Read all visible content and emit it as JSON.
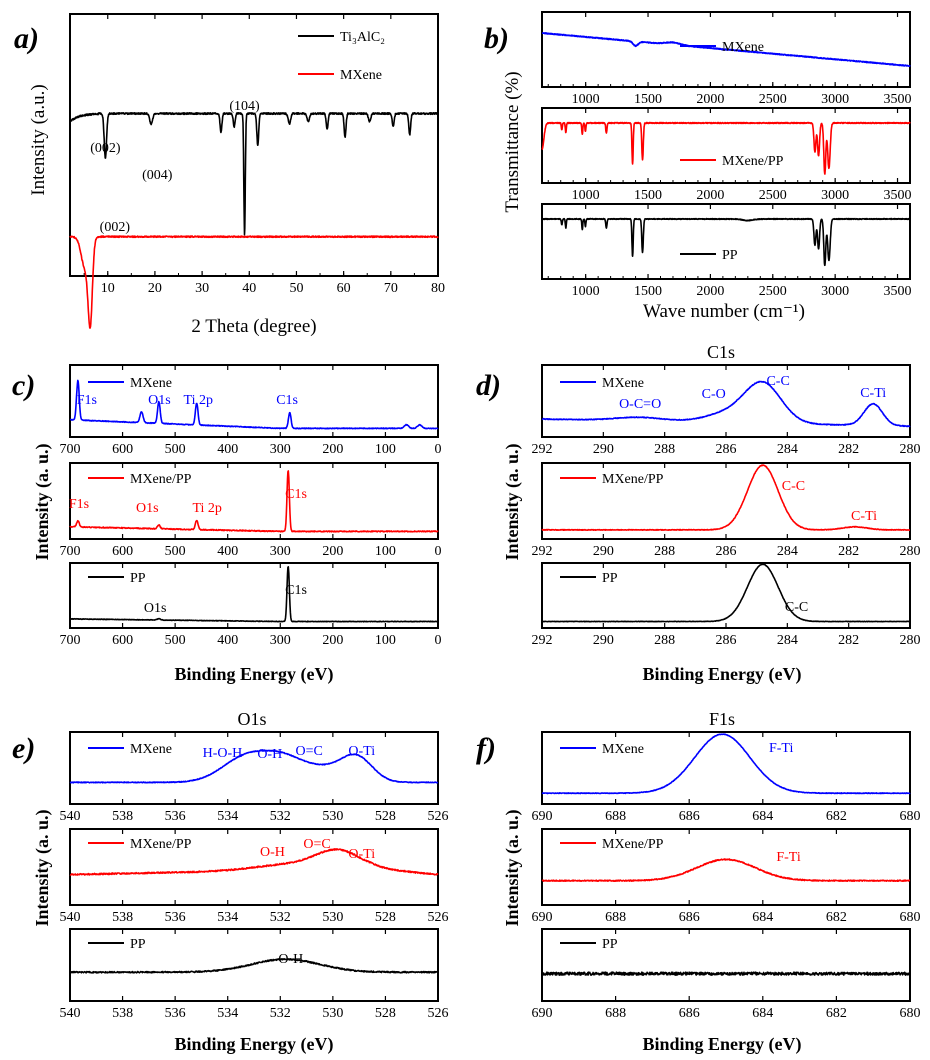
{
  "colors": {
    "black": "#000000",
    "red": "#ff0000",
    "blue": "#0000ff"
  },
  "chart_data": [
    {
      "id": "a",
      "label": "a)",
      "type": "line",
      "xlabel": "2 Theta (degree)",
      "ylabel": "Intensity (a.u.)",
      "xlim": [
        2,
        80
      ],
      "xticks": [
        "10",
        "20",
        "30",
        "40",
        "50",
        "60",
        "70",
        "80"
      ],
      "xtick_values": [
        10,
        20,
        30,
        40,
        50,
        60,
        70,
        80
      ],
      "legend": [
        "Ti₃AlC₂",
        "MXene"
      ],
      "series": [
        {
          "name": "Ti3AlC2",
          "color": "#000000",
          "baseline": 0.38,
          "noise": 0.006,
          "peaks": [
            [
              9.5,
              0.17,
              0.25
            ],
            [
              19.2,
              0.04,
              0.3
            ],
            [
              34.0,
              0.07,
              0.2
            ],
            [
              36.8,
              0.05,
              0.2
            ],
            [
              39.0,
              0.46,
              0.15
            ],
            [
              41.8,
              0.12,
              0.2
            ],
            [
              48.5,
              0.04,
              0.25
            ],
            [
              52.5,
              0.03,
              0.25
            ],
            [
              56.5,
              0.06,
              0.2
            ],
            [
              60.3,
              0.09,
              0.2
            ],
            [
              65.5,
              0.03,
              0.25
            ],
            [
              70.5,
              0.05,
              0.2
            ],
            [
              74.0,
              0.08,
              0.2
            ]
          ]
        },
        {
          "name": "MXene",
          "color": "#ff0000",
          "baseline": 0.85,
          "noise": 0.005,
          "peaks": [
            [
              6.3,
              0.3,
              0.45
            ],
            [
              5.2,
              0.12,
              0.8
            ]
          ]
        }
      ],
      "annotations": [
        "(002)",
        "(004)",
        "(104)",
        "(002)"
      ]
    },
    {
      "id": "b",
      "label": "b)",
      "type": "line",
      "xlabel": "Wave number (cm⁻¹)",
      "ylabel": "Transmittance (%)",
      "xlim": [
        650,
        3600
      ],
      "xticks": [
        "1000",
        "1500",
        "2000",
        "2500",
        "3000",
        "3500"
      ],
      "xtick_values": [
        1000,
        1500,
        2000,
        2500,
        3000,
        3500
      ],
      "series": [
        {
          "name": "MXene",
          "color": "#0000ff"
        },
        {
          "name": "MXene/PP",
          "color": "#ff0000"
        },
        {
          "name": "PP",
          "color": "#000000"
        }
      ]
    },
    {
      "id": "c",
      "label": "c)",
      "type": "line",
      "xlabel": "Binding Energy (eV)",
      "ylabel": "Intensity (a. u.)",
      "xlim": [
        700,
        0
      ],
      "xticks": [
        "700",
        "600",
        "500",
        "400",
        "300",
        "200",
        "100",
        "0"
      ],
      "xtick_values": [
        700,
        600,
        500,
        400,
        300,
        200,
        100,
        0
      ],
      "series": [
        {
          "name": "MXene",
          "color": "#0000ff",
          "annotations": [
            "F1s",
            "O1s",
            "Ti 2p",
            "C1s"
          ]
        },
        {
          "name": "MXene/PP",
          "color": "#ff0000",
          "annotations": [
            "F1s",
            "O1s",
            "Ti 2p",
            "C1s"
          ]
        },
        {
          "name": "PP",
          "color": "#000000",
          "annotations": [
            "O1s",
            "C1s"
          ]
        }
      ]
    },
    {
      "id": "d",
      "label": "d)",
      "type": "line",
      "title": "C1s",
      "xlabel": "Binding Energy (eV)",
      "ylabel": "Intensity (a. u.)",
      "xlim": [
        292,
        280
      ],
      "xticks": [
        "292",
        "290",
        "288",
        "286",
        "284",
        "282",
        "280"
      ],
      "xtick_values": [
        292,
        290,
        288,
        286,
        284,
        282,
        280
      ],
      "series": [
        {
          "name": "MXene",
          "color": "#0000ff",
          "annotations": [
            "O-C=O",
            "C-O",
            "C-C",
            "C-Ti"
          ]
        },
        {
          "name": "MXene/PP",
          "color": "#ff0000",
          "annotations": [
            "C-C",
            "C-Ti"
          ]
        },
        {
          "name": "PP",
          "color": "#000000",
          "annotations": [
            "C-C"
          ]
        }
      ]
    },
    {
      "id": "e",
      "label": "e)",
      "type": "line",
      "title": "O1s",
      "xlabel": "Binding Energy (eV)",
      "ylabel": "Intensity (a. u.)",
      "xlim": [
        540,
        526
      ],
      "xticks": [
        "540",
        "538",
        "536",
        "534",
        "532",
        "530",
        "528",
        "526"
      ],
      "xtick_values": [
        540,
        538,
        536,
        534,
        532,
        530,
        528,
        526
      ],
      "series": [
        {
          "name": "MXene",
          "color": "#0000ff",
          "annotations": [
            "H-O-H",
            "O-H",
            "O=C",
            "O-Ti"
          ]
        },
        {
          "name": "MXene/PP",
          "color": "#ff0000",
          "annotations": [
            "O-H",
            "O=C",
            "O-Ti"
          ]
        },
        {
          "name": "PP",
          "color": "#000000",
          "annotations": [
            "O-H"
          ]
        }
      ]
    },
    {
      "id": "f",
      "label": "f)",
      "type": "line",
      "title": "F1s",
      "xlabel": "Binding Energy (eV)",
      "ylabel": "Intensity (a. u.)",
      "xlim": [
        690,
        680
      ],
      "xticks": [
        "690",
        "688",
        "686",
        "684",
        "682",
        "680"
      ],
      "xtick_values": [
        690,
        688,
        686,
        684,
        682,
        680
      ],
      "series": [
        {
          "name": "MXene",
          "color": "#0000ff",
          "annotations": [
            "F-Ti"
          ]
        },
        {
          "name": "MXene/PP",
          "color": "#ff0000",
          "annotations": [
            "F-Ti"
          ]
        },
        {
          "name": "PP",
          "color": "#000000",
          "annotations": []
        }
      ]
    }
  ]
}
